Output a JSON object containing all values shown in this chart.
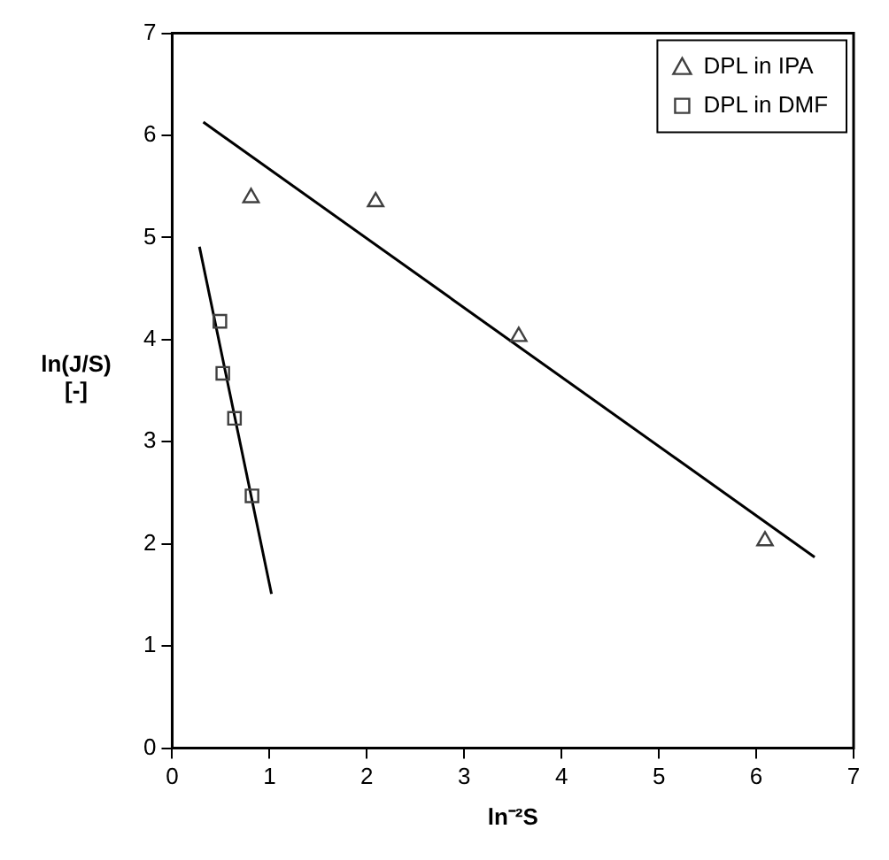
{
  "chart_data": {
    "type": "scatter",
    "xlabel": "ln⁻²S",
    "ylabel": "ln(J/S) [-]",
    "xlim": [
      0,
      7
    ],
    "xticks": [
      0,
      1,
      2,
      3,
      4,
      5,
      6,
      7
    ],
    "ylim": [
      0,
      7
    ],
    "yticks": [
      0,
      1,
      2,
      3,
      4,
      5,
      6,
      7
    ],
    "grid": false,
    "legend": "top right",
    "series": [
      {
        "name": "DPL in IPA",
        "marker": "triangle",
        "color": "#404040",
        "x": [
          0.81,
          2.09,
          3.56,
          6.09
        ],
        "values": [
          5.39,
          5.35,
          4.03,
          2.03
        ]
      },
      {
        "name": "DPL in DMF",
        "marker": "square",
        "color": "#404040",
        "x": [
          0.49,
          0.52,
          0.64,
          0.82
        ],
        "values": [
          4.18,
          3.67,
          3.23,
          2.47
        ]
      },
      {
        "type": "line",
        "marker": "none",
        "color": "#000000",
        "x": [
          0.32,
          6.6
        ],
        "values": [
          6.13,
          1.87
        ]
      },
      {
        "type": "line",
        "marker": "none",
        "color": "#000000",
        "x": [
          0.28,
          1.02
        ],
        "values": [
          4.91,
          1.51
        ]
      }
    ]
  }
}
